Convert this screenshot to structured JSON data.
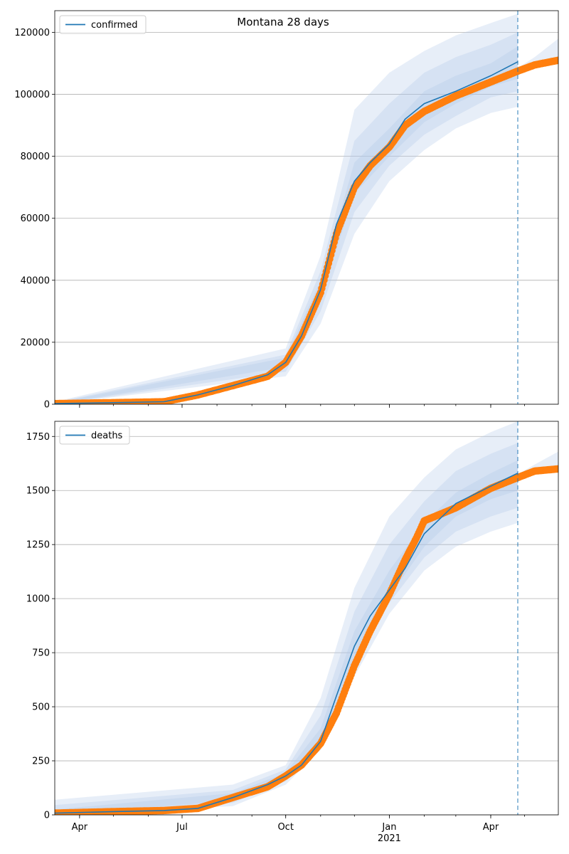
{
  "figure_title": "Montana 28 days",
  "x_axis": {
    "tick_labels": [
      "Apr",
      "Jul",
      "Oct",
      "Jan",
      "Apr"
    ],
    "tick_dates": [
      "2020-04-01",
      "2020-07-01",
      "2020-10-01",
      "2021-01-01",
      "2021-04-01"
    ],
    "year_label": "2021",
    "range": [
      "2020-03-10",
      "2021-05-31"
    ]
  },
  "forecast_start": "2021-04-25",
  "colors": {
    "model_line": "#1f77b4",
    "observed_points": "#ff7f0e",
    "band": "#aec7e8",
    "grid": "#b0b0b0",
    "forecast_marker": "#1f77b4"
  },
  "chart_data": [
    {
      "type": "line",
      "series": [
        {
          "name": "confirmed",
          "role": "model",
          "x": [
            "2020-03-10",
            "2020-05-01",
            "2020-06-15",
            "2020-07-15",
            "2020-08-15",
            "2020-09-15",
            "2020-10-01",
            "2020-10-15",
            "2020-11-01",
            "2020-11-15",
            "2020-12-01",
            "2020-12-15",
            "2021-01-01",
            "2021-01-15",
            "2021-02-01",
            "2021-03-01",
            "2021-04-01",
            "2021-04-25"
          ],
          "values": [
            200,
            500,
            800,
            3000,
            6000,
            9500,
            13500,
            22000,
            37000,
            58000,
            72000,
            78000,
            84000,
            92000,
            97000,
            101000,
            106000,
            110500
          ]
        },
        {
          "name": "observed",
          "role": "observed",
          "x": [
            "2020-03-10",
            "2020-05-01",
            "2020-06-15",
            "2020-07-15",
            "2020-08-15",
            "2020-09-15",
            "2020-10-01",
            "2020-10-15",
            "2020-11-01",
            "2020-11-15",
            "2020-12-01",
            "2020-12-15",
            "2021-01-01",
            "2021-01-15",
            "2021-02-01",
            "2021-03-01",
            "2021-04-01",
            "2021-04-25",
            "2021-05-10",
            "2021-05-31"
          ],
          "values": [
            200,
            500,
            800,
            3000,
            6000,
            9000,
            13500,
            22000,
            36000,
            55000,
            70000,
            77000,
            83000,
            90000,
            94500,
            99500,
            104000,
            107500,
            109500,
            111000
          ]
        }
      ],
      "bands": [
        {
          "x": [
            "2020-03-10",
            "2020-10-01",
            "2020-11-01",
            "2020-12-01",
            "2021-01-01",
            "2021-02-01",
            "2021-03-01",
            "2021-04-01",
            "2021-04-25"
          ],
          "lower": [
            0,
            9000,
            26000,
            55000,
            72000,
            82000,
            89000,
            94000,
            96000
          ],
          "upper": [
            800,
            18000,
            48000,
            95000,
            107000,
            114000,
            119000,
            123000,
            126000
          ]
        },
        {
          "x": [
            "2020-03-10",
            "2020-10-01",
            "2020-11-01",
            "2020-12-01",
            "2021-01-01",
            "2021-02-01",
            "2021-03-01",
            "2021-04-01",
            "2021-04-25"
          ],
          "lower": [
            0,
            10500,
            30000,
            62000,
            77000,
            87000,
            93000,
            99000,
            101000
          ],
          "upper": [
            600,
            16000,
            43000,
            85000,
            97000,
            107000,
            112000,
            116000,
            120000
          ]
        },
        {
          "x": [
            "2020-03-10",
            "2020-10-01",
            "2020-11-01",
            "2020-12-01",
            "2021-01-01",
            "2021-02-01",
            "2021-03-01",
            "2021-04-01",
            "2021-04-25"
          ],
          "lower": [
            0,
            12000,
            34000,
            68000,
            80000,
            91000,
            97000,
            102500,
            105000
          ],
          "upper": [
            400,
            15000,
            40000,
            78000,
            89000,
            101000,
            106000,
            110000,
            115500
          ]
        },
        {
          "x": [
            "2021-04-25",
            "2021-05-10",
            "2021-05-31"
          ],
          "lower": [
            107000,
            108500,
            110000
          ],
          "upper": [
            108500,
            112000,
            118000
          ]
        }
      ],
      "ylim": [
        0,
        127000
      ],
      "yticks": [
        0,
        20000,
        40000,
        60000,
        80000,
        100000,
        120000
      ],
      "ytick_labels": [
        "0",
        "20000",
        "40000",
        "60000",
        "80000",
        "100000",
        "120000"
      ],
      "grid": "horizontal",
      "legend": {
        "label": "confirmed",
        "placement": "top-left"
      }
    },
    {
      "type": "line",
      "series": [
        {
          "name": "deaths",
          "role": "model",
          "x": [
            "2020-03-10",
            "2020-05-01",
            "2020-06-15",
            "2020-07-15",
            "2020-08-15",
            "2020-09-15",
            "2020-10-01",
            "2020-10-15",
            "2020-11-01",
            "2020-11-15",
            "2020-12-01",
            "2020-12-15",
            "2021-01-01",
            "2021-01-15",
            "2021-02-01",
            "2021-03-01",
            "2021-04-01",
            "2021-04-25"
          ],
          "values": [
            8,
            15,
            20,
            30,
            80,
            140,
            180,
            230,
            340,
            550,
            780,
            920,
            1040,
            1140,
            1300,
            1440,
            1520,
            1580
          ]
        },
        {
          "name": "observed",
          "role": "observed",
          "x": [
            "2020-03-10",
            "2020-05-01",
            "2020-06-15",
            "2020-07-15",
            "2020-08-15",
            "2020-09-15",
            "2020-10-01",
            "2020-10-15",
            "2020-11-01",
            "2020-11-15",
            "2020-12-01",
            "2020-12-15",
            "2021-01-01",
            "2021-01-15",
            "2021-01-25",
            "2021-02-01",
            "2021-03-01",
            "2021-04-01",
            "2021-04-25",
            "2021-05-10",
            "2021-05-31"
          ],
          "values": [
            8,
            15,
            20,
            30,
            80,
            130,
            180,
            230,
            330,
            470,
            690,
            850,
            1020,
            1180,
            1280,
            1360,
            1420,
            1510,
            1560,
            1590,
            1600
          ]
        }
      ],
      "bands": [
        {
          "x": [
            "2020-03-10",
            "2020-08-15",
            "2020-10-01",
            "2020-11-01",
            "2020-12-01",
            "2021-01-01",
            "2021-02-01",
            "2021-03-01",
            "2021-04-01",
            "2021-04-25"
          ],
          "lower": [
            0,
            40,
            140,
            300,
            640,
            930,
            1130,
            1240,
            1310,
            1350
          ],
          "upper": [
            70,
            140,
            230,
            540,
            1050,
            1380,
            1560,
            1690,
            1770,
            1820
          ]
        },
        {
          "x": [
            "2020-03-10",
            "2020-08-15",
            "2020-10-01",
            "2020-11-01",
            "2020-12-01",
            "2021-01-01",
            "2021-02-01",
            "2021-03-01",
            "2021-04-01",
            "2021-04-25"
          ],
          "lower": [
            0,
            55,
            155,
            315,
            690,
            980,
            1190,
            1310,
            1380,
            1420
          ],
          "upper": [
            45,
            115,
            210,
            460,
            940,
            1250,
            1450,
            1590,
            1670,
            1720
          ]
        },
        {
          "x": [
            "2020-03-10",
            "2020-08-15",
            "2020-10-01",
            "2020-11-01",
            "2020-12-01",
            "2021-01-01",
            "2021-02-01",
            "2021-03-01",
            "2021-04-01",
            "2021-04-25"
          ],
          "lower": [
            0,
            65,
            165,
            325,
            730,
            1010,
            1240,
            1380,
            1460,
            1500
          ],
          "upper": [
            25,
            100,
            195,
            400,
            850,
            1130,
            1350,
            1490,
            1580,
            1640
          ]
        },
        {
          "x": [
            "2021-04-25",
            "2021-05-10",
            "2021-05-31"
          ],
          "lower": [
            1550,
            1575,
            1590
          ],
          "upper": [
            1575,
            1620,
            1680
          ]
        }
      ],
      "ylim": [
        0,
        1820
      ],
      "yticks": [
        0,
        250,
        500,
        750,
        1000,
        1250,
        1500,
        1750
      ],
      "ytick_labels": [
        "0",
        "250",
        "500",
        "750",
        "1000",
        "1250",
        "1500",
        "1750"
      ],
      "grid": "horizontal",
      "legend": {
        "label": "deaths",
        "placement": "top-left"
      }
    }
  ]
}
